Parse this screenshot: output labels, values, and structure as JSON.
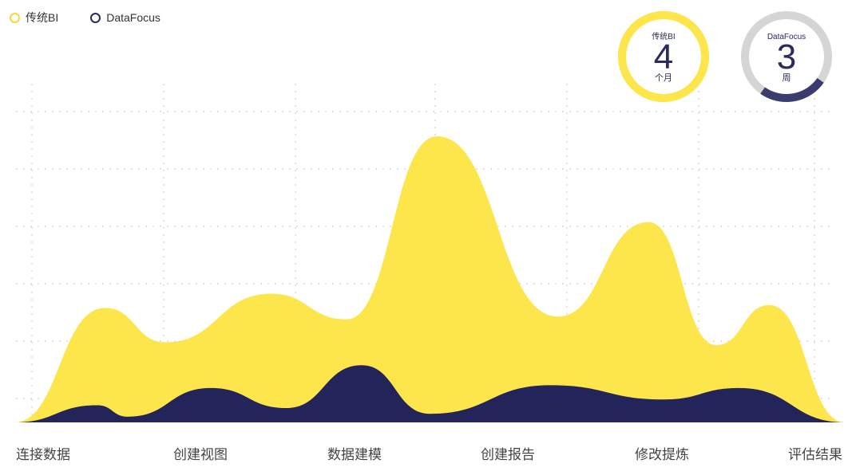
{
  "colors": {
    "traditional": "#FDE54C",
    "datafocus": "#23245A",
    "gauge_track": "#D5D5D5",
    "grid": "#E2E2E2"
  },
  "legend": [
    {
      "name": "传统BI",
      "color": "#F6D93E"
    },
    {
      "name": "DataFocus",
      "color": "#2B2B5C"
    }
  ],
  "gauges": [
    {
      "label": "传统BI",
      "value": "4",
      "unit": "个月",
      "fraction": 1.0,
      "color": "#FDE54C",
      "track": "#FDE54C"
    },
    {
      "label": "DataFocus",
      "value": "3",
      "unit": "周",
      "fraction": 0.25,
      "color": "#3A3B6E",
      "track": "#D5D5D5"
    }
  ],
  "chart_data": {
    "type": "area",
    "categories": [
      "连接数据",
      "创建视图",
      "数据建模",
      "创建报告",
      "修改提炼",
      "评估结果"
    ],
    "ylim": [
      0,
      100
    ],
    "grid": true,
    "legend_position": "top-left",
    "series": [
      {
        "name": "传统BI",
        "color": "#FDE54C",
        "points": [
          [
            0,
            0
          ],
          [
            0.6,
            40
          ],
          [
            1.0,
            28
          ],
          [
            1.7,
            45
          ],
          [
            2.2,
            36
          ],
          [
            2.8,
            100
          ],
          [
            3.6,
            37
          ],
          [
            4.2,
            70
          ],
          [
            4.65,
            27
          ],
          [
            5.0,
            41
          ],
          [
            5.5,
            0
          ]
        ]
      },
      {
        "name": "DataFocus",
        "color": "#23245A",
        "points": [
          [
            0,
            0
          ],
          [
            0.55,
            6
          ],
          [
            0.75,
            2
          ],
          [
            1.3,
            12
          ],
          [
            1.8,
            5
          ],
          [
            2.3,
            20
          ],
          [
            2.75,
            3
          ],
          [
            3.55,
            13
          ],
          [
            4.3,
            8
          ],
          [
            4.8,
            12
          ],
          [
            5.5,
            0
          ]
        ]
      }
    ]
  }
}
